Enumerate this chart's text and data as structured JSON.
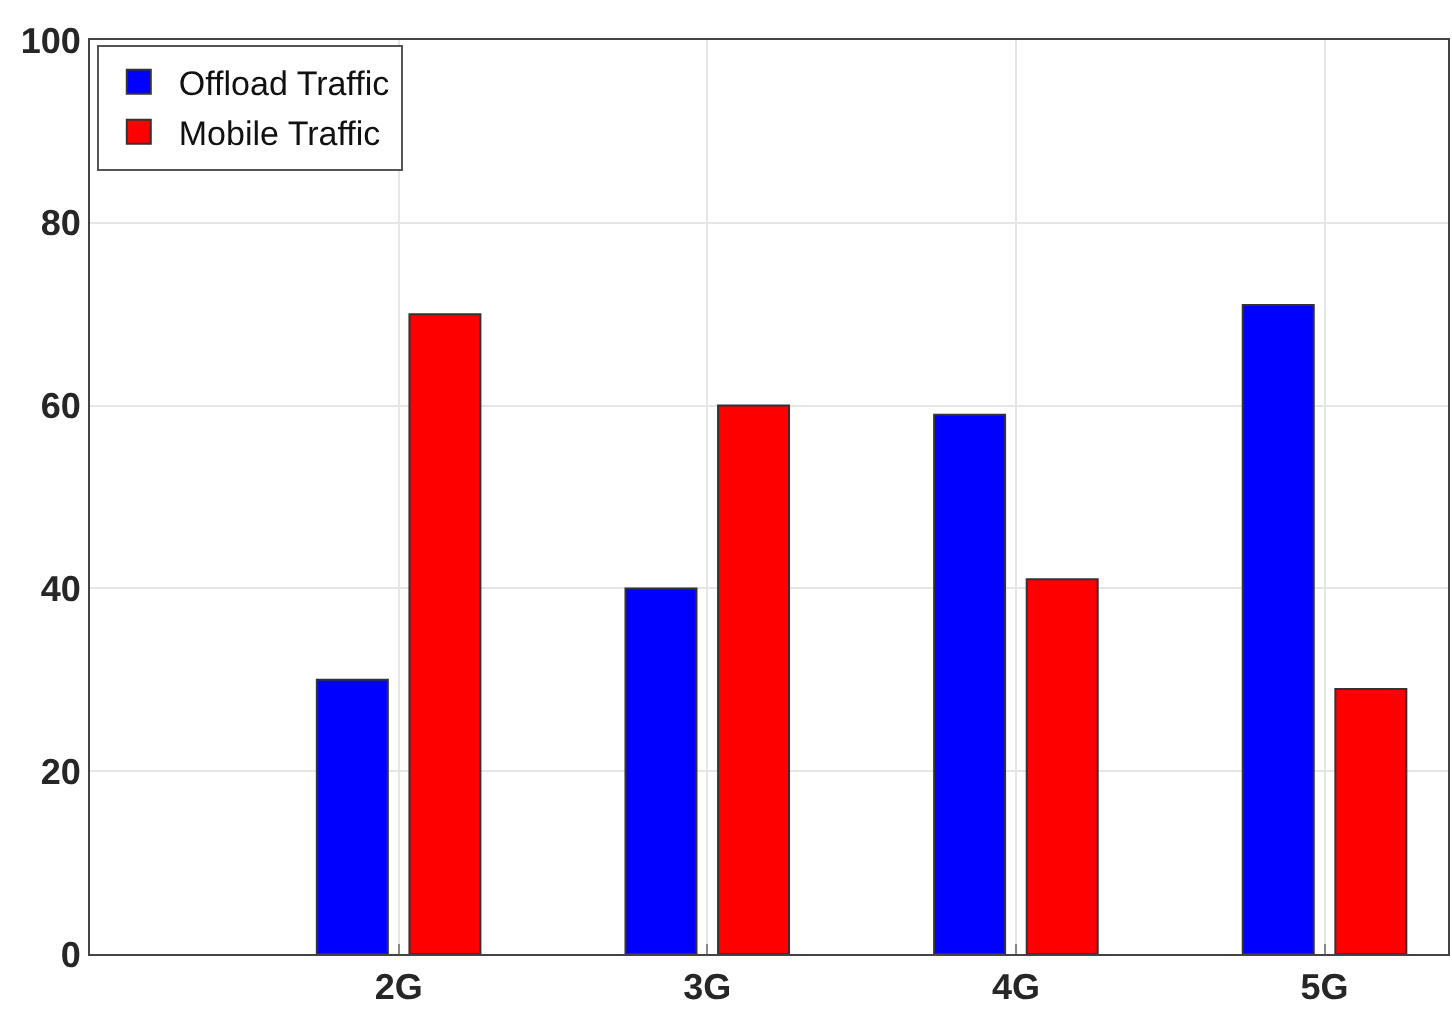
{
  "chart_data": {
    "type": "bar",
    "categories": [
      "2G",
      "3G",
      "4G",
      "5G"
    ],
    "series": [
      {
        "name": "Offload Traffic",
        "color": "#0000ff",
        "values": [
          30,
          40,
          59,
          71
        ]
      },
      {
        "name": "Mobile Traffic",
        "color": "#ff0000",
        "values": [
          70,
          60,
          41,
          29
        ]
      }
    ],
    "ylim": [
      0,
      100
    ],
    "yticks": [
      0,
      20,
      40,
      60,
      80,
      100
    ],
    "grid": true,
    "legend": "top left"
  }
}
